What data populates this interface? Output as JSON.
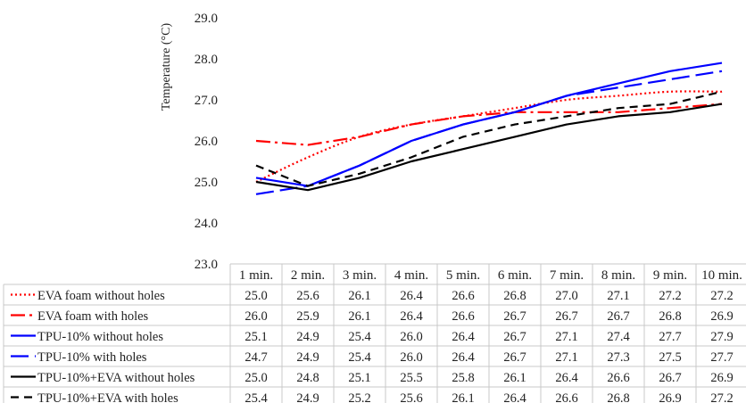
{
  "chart_data": {
    "type": "line",
    "title": "",
    "xlabel": "",
    "ylabel": "Temperature (°C)",
    "ylim": [
      23.0,
      29.0
    ],
    "yticks": [
      "23.0",
      "24.0",
      "25.0",
      "26.0",
      "27.0",
      "28.0",
      "29.0"
    ],
    "categories": [
      "1 min.",
      "2 min.",
      "3 min.",
      "4 min.",
      "5 min.",
      "6 min.",
      "7 min.",
      "8 min.",
      "9 min.",
      "10 min."
    ],
    "grid": false,
    "legend": "data-table-left",
    "series": [
      {
        "name": "EVA foam without holes",
        "color": "#ff0000",
        "dash": "dotted",
        "smooth": true,
        "values": [
          25.0,
          25.6,
          26.1,
          26.4,
          26.6,
          26.8,
          27.0,
          27.1,
          27.2,
          27.2
        ],
        "labels": [
          "25.0",
          "25.6",
          "26.1",
          "26.4",
          "26.6",
          "26.8",
          "27.0",
          "27.1",
          "27.2",
          "27.2"
        ]
      },
      {
        "name": "EVA foam with holes",
        "color": "#ff0000",
        "dash": "dashdot",
        "smooth": false,
        "values": [
          26.0,
          25.9,
          26.1,
          26.4,
          26.6,
          26.7,
          26.7,
          26.7,
          26.8,
          26.9
        ],
        "labels": [
          "26.0",
          "25.9",
          "26.1",
          "26.4",
          "26.6",
          "26.7",
          "26.7",
          "26.7",
          "26.8",
          "26.9"
        ]
      },
      {
        "name": "TPU-10% without holes",
        "color": "#0000ff",
        "dash": "solid",
        "smooth": false,
        "values": [
          25.1,
          24.9,
          25.4,
          26.0,
          26.4,
          26.7,
          27.1,
          27.4,
          27.7,
          27.9
        ],
        "labels": [
          "25.1",
          "24.9",
          "25.4",
          "26.0",
          "26.4",
          "26.7",
          "27.1",
          "27.4",
          "27.7",
          "27.9"
        ]
      },
      {
        "name": "TPU-10% with holes",
        "color": "#0000ff",
        "dash": "longdash",
        "smooth": false,
        "values": [
          24.7,
          24.9,
          25.4,
          26.0,
          26.4,
          26.7,
          27.1,
          27.3,
          27.5,
          27.7
        ],
        "labels": [
          "24.7",
          "24.9",
          "25.4",
          "26.0",
          "26.4",
          "26.7",
          "27.1",
          "27.3",
          "27.5",
          "27.7"
        ]
      },
      {
        "name": "TPU-10%+EVA without holes",
        "color": "#000000",
        "dash": "solid",
        "smooth": false,
        "values": [
          25.0,
          24.8,
          25.1,
          25.5,
          25.8,
          26.1,
          26.4,
          26.6,
          26.7,
          26.9
        ],
        "labels": [
          "25.0",
          "24.8",
          "25.1",
          "25.5",
          "25.8",
          "26.1",
          "26.4",
          "26.6",
          "26.7",
          "26.9"
        ]
      },
      {
        "name": "TPU-10%+EVA with holes",
        "color": "#000000",
        "dash": "dash",
        "smooth": false,
        "values": [
          25.4,
          24.9,
          25.2,
          25.6,
          26.1,
          26.4,
          26.6,
          26.8,
          26.9,
          27.2
        ],
        "labels": [
          "25.4",
          "24.9",
          "25.2",
          "25.6",
          "26.1",
          "26.4",
          "26.6",
          "26.8",
          "26.9",
          "27.2"
        ]
      }
    ]
  }
}
